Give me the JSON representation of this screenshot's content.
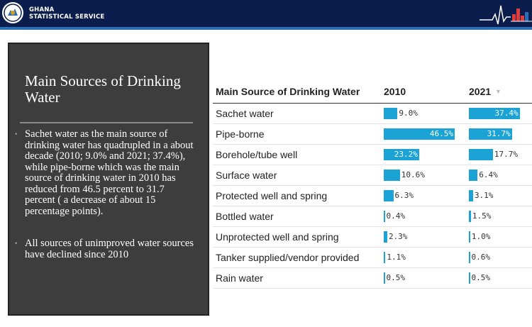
{
  "header": {
    "org_line1": "GHANA",
    "org_line2": "STATISTICAL SERVICE"
  },
  "panel": {
    "title": "Main Sources of Drinking Water",
    "bullets": [
      "Sachet water as the main source of drinking water has quadrupled in a about decade (2010; 9.0% and 2021; 37.4%), while pipe-borne which was the main source of drinking water in 2010 has reduced from 46.5 percent to 31.7 percent ( a decrease of about 15 percentage points).",
      "All sources of unimproved water sources have declined since 2010"
    ]
  },
  "table": {
    "headers": {
      "source": "Main Source of Drinking Water",
      "y2010": "2010",
      "y2021": "2021"
    },
    "bar_color": "#1ba3d6",
    "scale_max": 46.5,
    "rows": [
      {
        "label": "Sachet water",
        "v2010": 9.0,
        "t2010": "9.0%",
        "v2021": 37.4,
        "t2021": "37.4%"
      },
      {
        "label": "Pipe-borne",
        "v2010": 46.5,
        "t2010": "46.5%",
        "v2021": 31.7,
        "t2021": "31.7%"
      },
      {
        "label": "Borehole/tube well",
        "v2010": 23.2,
        "t2010": "23.2%",
        "v2021": 17.7,
        "t2021": "17.7%"
      },
      {
        "label": "Surface water",
        "v2010": 10.6,
        "t2010": "10.6%",
        "v2021": 6.4,
        "t2021": "6.4%"
      },
      {
        "label": "Protected well and spring",
        "v2010": 6.3,
        "t2010": "6.3%",
        "v2021": 3.1,
        "t2021": "3.1%"
      },
      {
        "label": "Bottled water",
        "v2010": 0.4,
        "t2010": "0.4%",
        "v2021": 1.5,
        "t2021": "1.5%"
      },
      {
        "label": "Unprotected well and spring",
        "v2010": 2.3,
        "t2010": "2.3%",
        "v2021": 1.0,
        "t2021": "1.0%"
      },
      {
        "label": "Tanker supplied/vendor provided",
        "v2010": 1.1,
        "t2010": "1.1%",
        "v2021": 0.6,
        "t2021": "0.6%"
      },
      {
        "label": "Rain water",
        "v2010": 0.5,
        "t2010": "0.5%",
        "v2021": 0.5,
        "t2021": "0.5%"
      }
    ]
  }
}
